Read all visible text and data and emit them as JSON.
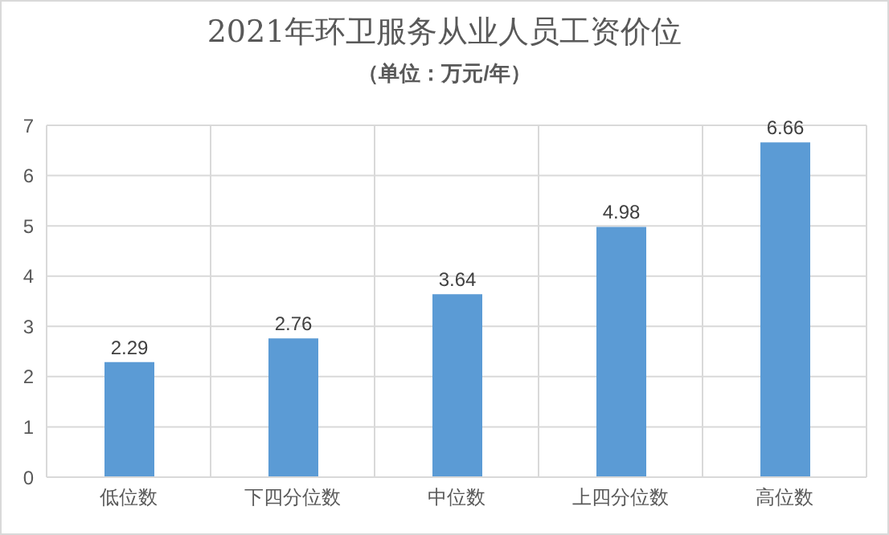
{
  "chart_data": {
    "type": "bar",
    "title": "2021年环卫服务从业人员工资价位",
    "subtitle": "（单位：万元/年）",
    "categories": [
      "低位数",
      "下四分位数",
      "中位数",
      "上四分位数",
      "高位数"
    ],
    "values": [
      2.29,
      2.76,
      3.64,
      4.98,
      6.66
    ],
    "color": "#5b9bd5",
    "ylim": [
      0,
      7
    ],
    "yticks": [
      0,
      1,
      2,
      3,
      4,
      5,
      6,
      7
    ],
    "grid": true,
    "data_labels": true
  }
}
